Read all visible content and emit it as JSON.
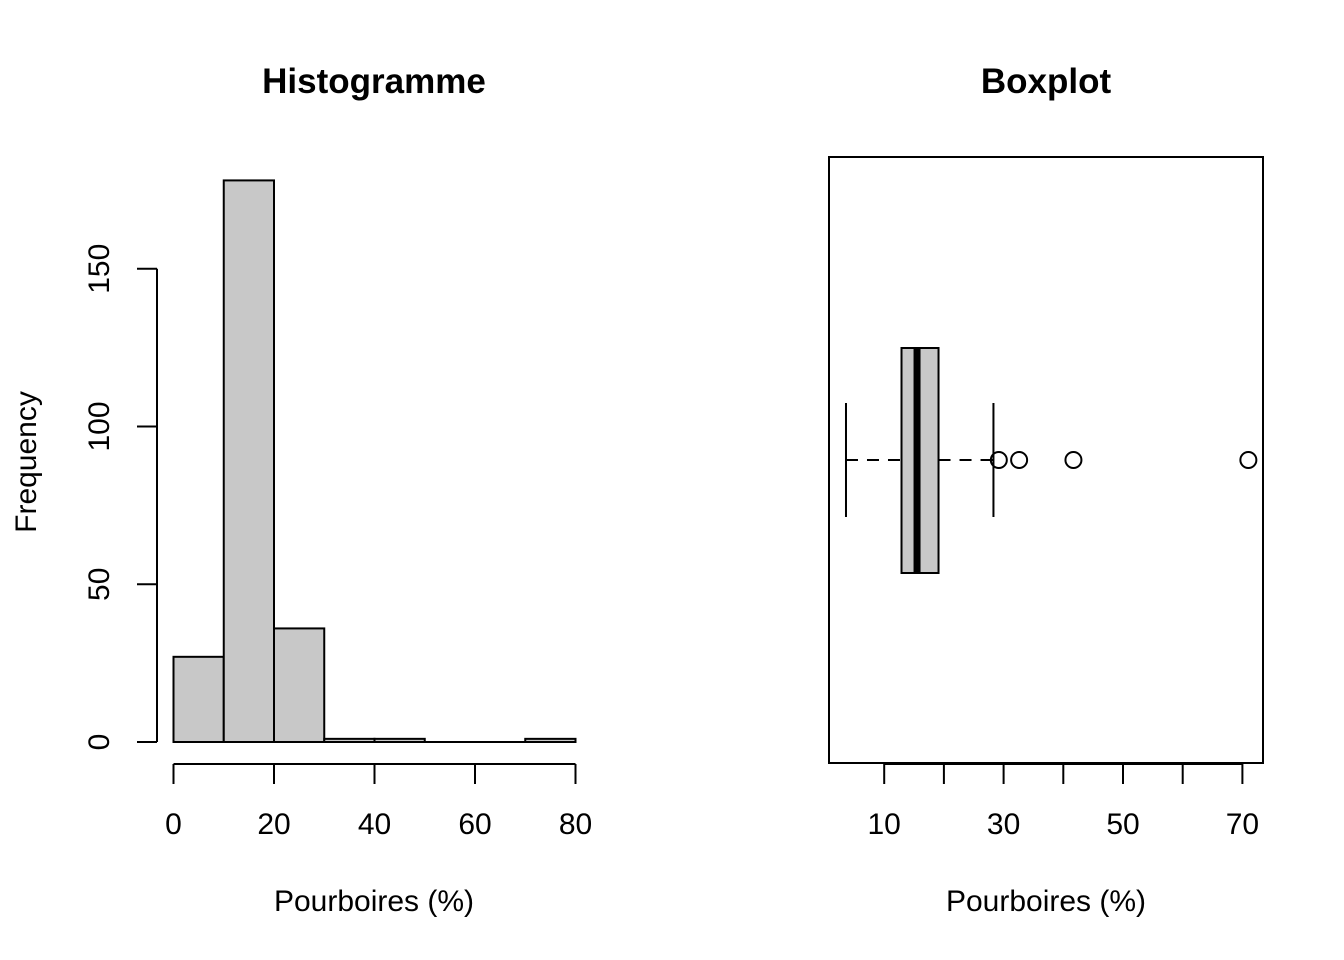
{
  "chart_data": [
    {
      "type": "histogram",
      "title": "Histogramme",
      "xlabel": "Pourboires (%)",
      "ylabel": "Frequency",
      "bins": [
        [
          0,
          10
        ],
        [
          10,
          20
        ],
        [
          20,
          30
        ],
        [
          30,
          40
        ],
        [
          40,
          50
        ],
        [
          50,
          60
        ],
        [
          60,
          70
        ],
        [
          70,
          80
        ]
      ],
      "values": [
        27,
        178,
        36,
        1,
        1,
        0,
        0,
        1
      ],
      "xlim": [
        0,
        80
      ],
      "ylim": [
        0,
        180
      ],
      "x_ticks": [
        0,
        20,
        40,
        60,
        80
      ],
      "y_ticks": [
        0,
        50,
        100,
        150
      ],
      "bar_color": "#c8c8c8",
      "grid": false
    },
    {
      "type": "boxplot",
      "title": "Boxplot",
      "xlabel": "Pourboires (%)",
      "orientation": "horizontal",
      "whisker_low": 3.6,
      "q1": 12.9,
      "median": 15.5,
      "q3": 19.1,
      "whisker_high": 28.3,
      "outliers": [
        29.2,
        32.6,
        41.7,
        71.0
      ],
      "xlim": [
        3.6,
        71.0
      ],
      "x_ticks": [
        10,
        20,
        30,
        40,
        50,
        60,
        70
      ],
      "x_tick_labels": [
        "10",
        "",
        "30",
        "",
        "50",
        "",
        "70"
      ],
      "box_color": "#c8c8c8",
      "grid": false
    }
  ]
}
